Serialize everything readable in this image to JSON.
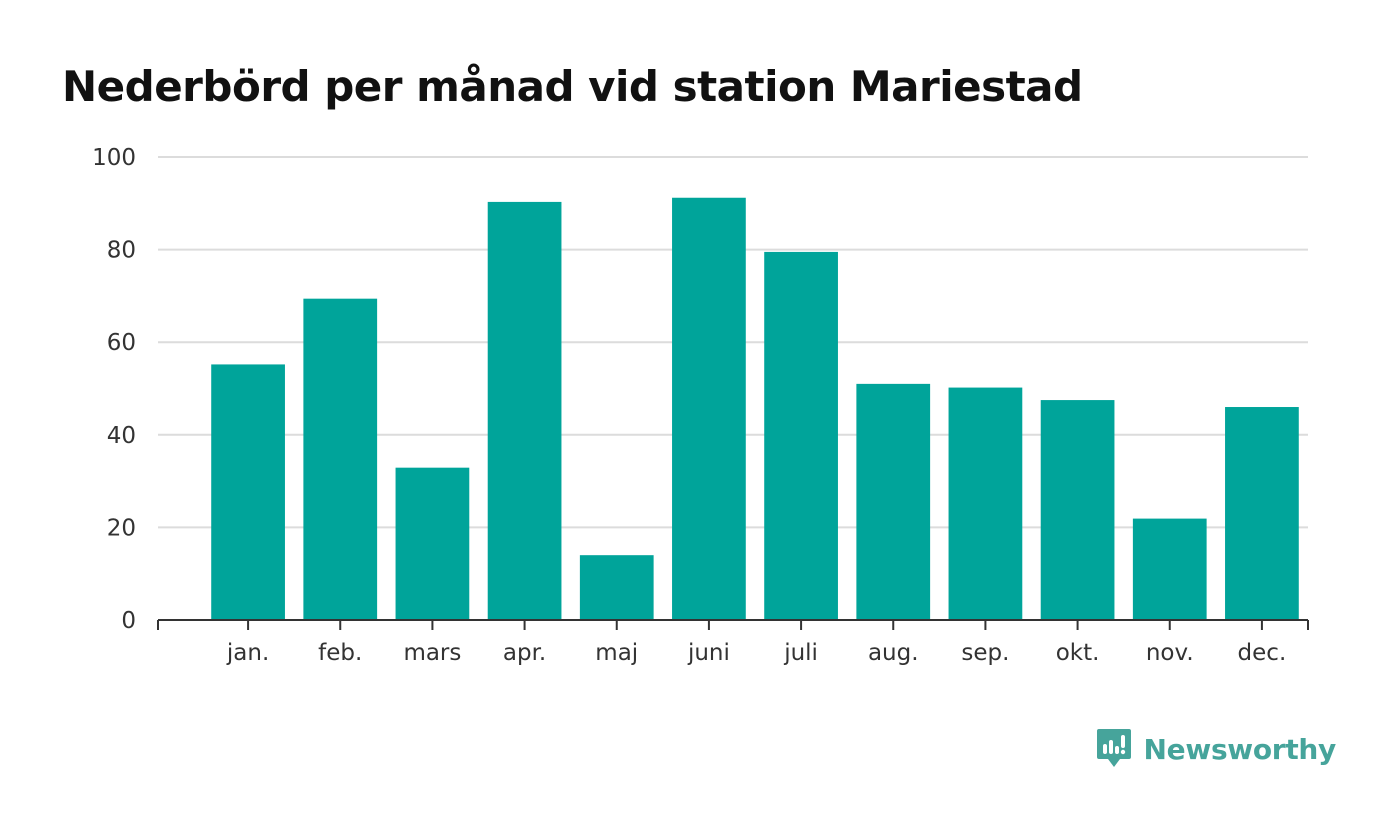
{
  "chart_data": {
    "type": "bar",
    "title": "Nederbörd per månad vid station Mariestad",
    "categories": [
      "jan.",
      "feb.",
      "mars",
      "apr.",
      "maj",
      "juni",
      "juli",
      "aug.",
      "sep.",
      "okt.",
      "nov.",
      "dec."
    ],
    "values": [
      55.2,
      69.4,
      32.9,
      90.3,
      14.0,
      91.2,
      79.5,
      51.0,
      50.2,
      47.5,
      21.9,
      46.0
    ],
    "xlabel": "",
    "ylabel": "",
    "ylim": [
      0,
      100
    ],
    "yticks": [
      0,
      20,
      40,
      60,
      80,
      100
    ],
    "grid": true,
    "colors": {
      "bar": "#00a49a",
      "grid": "#dcdcdc",
      "axis": "#333333"
    }
  },
  "brand": {
    "name": "Newsworthy",
    "icon": "newsworthy-logo-icon",
    "color": "#46a49b"
  }
}
